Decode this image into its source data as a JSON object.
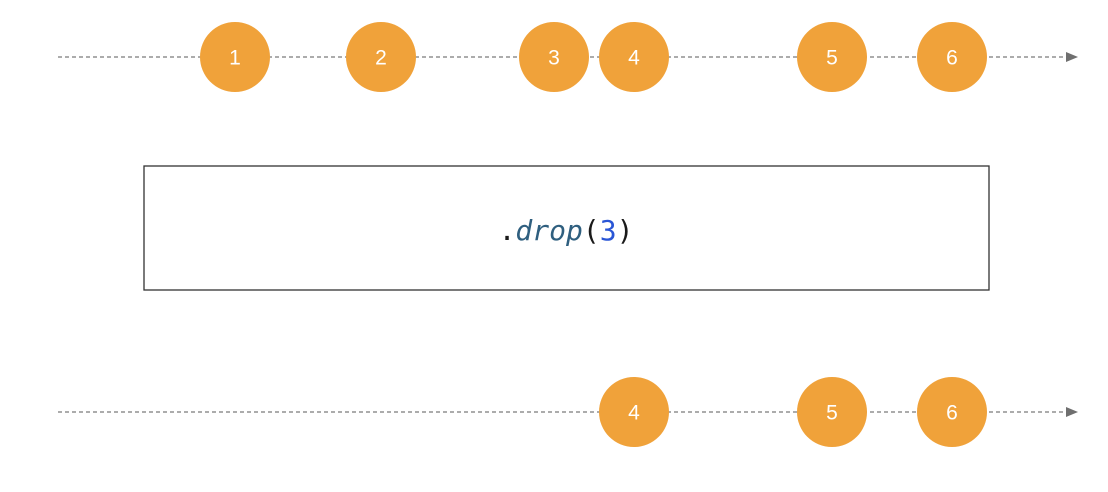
{
  "operator": {
    "dot": ".",
    "name": "drop",
    "open_paren": "(",
    "argument": "3",
    "close_paren": ")"
  },
  "input_timeline": {
    "marbles": [
      {
        "label": "1",
        "color": "#f0a23a"
      },
      {
        "label": "2",
        "color": "#f0a23a"
      },
      {
        "label": "3",
        "color": "#f0a23a"
      },
      {
        "label": "4",
        "color": "#f0a23a"
      },
      {
        "label": "5",
        "color": "#f0a23a"
      },
      {
        "label": "6",
        "color": "#f0a23a"
      }
    ]
  },
  "output_timeline": {
    "marbles": [
      {
        "label": "4",
        "color": "#f0a23a"
      },
      {
        "label": "5",
        "color": "#f0a23a"
      },
      {
        "label": "6",
        "color": "#f0a23a"
      }
    ]
  },
  "colors": {
    "marble": "#f0a23a",
    "marble_text": "#ffffff",
    "line": "#7a7a7a",
    "operator_name": "#2f5f7f",
    "operator_argument": "#2a56d6"
  }
}
